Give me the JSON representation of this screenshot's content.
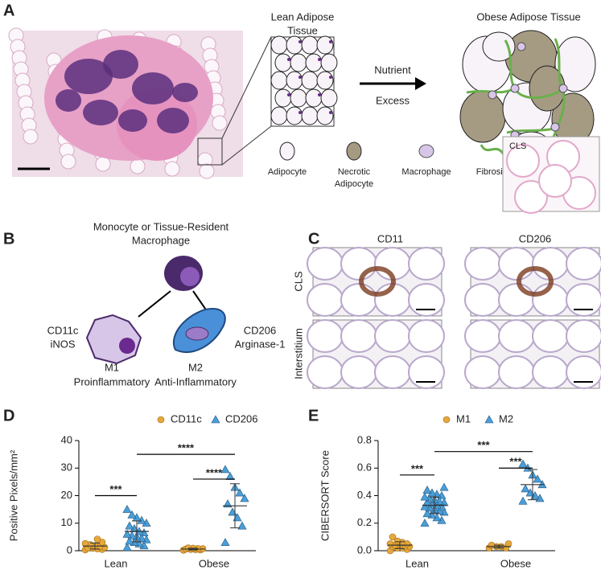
{
  "panel_letters": [
    "A",
    "B",
    "C",
    "D",
    "E"
  ],
  "panel_a": {
    "lean_title": [
      "Lean Adipose",
      "Tissue"
    ],
    "obese_title": "Obese Adipose Tissue",
    "arrow_label": [
      "Nutrient",
      "Excess"
    ],
    "legend": [
      [
        "Adipocyte"
      ],
      [
        "Necrotic",
        "Adipocyte"
      ],
      [
        "Macrophage"
      ],
      [
        "Fibrosis"
      ]
    ],
    "inset_label": "CLS"
  },
  "panel_b": {
    "origin": [
      "Monocyte or Tissue-Resident",
      "Macrophage"
    ],
    "m1_markers": [
      "CD11c",
      "iNOS"
    ],
    "m2_markers": [
      "CD206",
      "Arginase-1"
    ],
    "m1_label": [
      "M1",
      "Proinflammatory"
    ],
    "m2_label": [
      "M2",
      "Anti-Inflammatory"
    ]
  },
  "panel_c": {
    "columns": [
      "CD11",
      "CD206"
    ],
    "rows": [
      "CLS",
      "Interstitium"
    ]
  },
  "chart_data": [
    {
      "type": "strip",
      "y_label": "Positive Pixels/mm²",
      "categories": [
        "Lean",
        "Obese"
      ],
      "ylim": [
        0,
        40
      ],
      "yticks": [
        0,
        10,
        20,
        30,
        40
      ],
      "series": [
        {
          "name": "CD11c",
          "color": "#e6a83a",
          "marker": "circle",
          "values": [
            [
              0.3,
              0.5,
              0.7,
              0.9,
              1.0,
              1.2,
              1.5,
              1.8,
              2.2,
              2.6,
              3.1,
              4.2
            ],
            [
              0.2,
              0.3,
              0.4,
              0.5,
              0.6,
              0.7,
              0.8,
              0.9,
              1.0
            ]
          ],
          "means": [
            1.7,
            0.6
          ],
          "sds": [
            1.1,
            0.3
          ]
        },
        {
          "name": "CD206",
          "color": "#4a9fd8",
          "marker": "triangle",
          "values": [
            [
              1.2,
              1.8,
              2.5,
              3.0,
              3.5,
              4.0,
              4.5,
              5.0,
              5.5,
              6.0,
              6.5,
              7.0,
              8.0,
              9.0,
              10.0,
              11.0,
              12.0,
              13.0,
              15.0
            ],
            [
              3.0,
              9.0,
              12.0,
              14.0,
              17.0,
              19.0,
              21.0,
              23.0,
              27.0,
              29.5
            ]
          ],
          "means": [
            7.0,
            16.3
          ],
          "sds": [
            3.8,
            8.0
          ]
        }
      ],
      "comparisons": [
        {
          "label": "***",
          "y": 20
        },
        {
          "label": "****",
          "y": 35
        },
        {
          "label": "****",
          "y": 26
        }
      ]
    },
    {
      "type": "strip",
      "y_label": "CIBERSORT Score",
      "categories": [
        "Lean",
        "Obese"
      ],
      "ylim": [
        0,
        0.8
      ],
      "yticks": [
        {
          "value": 0,
          "label": "0.0"
        },
        0.2,
        0.4,
        0.6,
        0.8
      ],
      "series": [
        {
          "name": "M1",
          "color": "#e6a83a",
          "marker": "circle",
          "values": [
            [
              0.0,
              0.01,
              0.02,
              0.02,
              0.03,
              0.03,
              0.03,
              0.04,
              0.04,
              0.05,
              0.05,
              0.06,
              0.07,
              0.1
            ],
            [
              0.02,
              0.02,
              0.03,
              0.03,
              0.04,
              0.05
            ]
          ],
          "means": [
            0.04,
            0.03
          ],
          "sds": [
            0.025,
            0.01
          ]
        },
        {
          "name": "M2",
          "color": "#4a9fd8",
          "marker": "triangle",
          "values": [
            [
              0.2,
              0.22,
              0.24,
              0.26,
              0.27,
              0.28,
              0.29,
              0.3,
              0.31,
              0.32,
              0.32,
              0.33,
              0.34,
              0.35,
              0.35,
              0.36,
              0.37,
              0.38,
              0.39,
              0.4,
              0.41,
              0.42,
              0.44,
              0.46
            ],
            [
              0.36,
              0.38,
              0.4,
              0.42,
              0.45,
              0.48,
              0.52,
              0.55,
              0.6,
              0.63
            ]
          ],
          "means": [
            0.33,
            0.48
          ],
          "sds": [
            0.06,
            0.11
          ]
        }
      ],
      "comparisons": [
        {
          "label": "***",
          "y": 0.55
        },
        {
          "label": "***",
          "y": 0.72
        },
        {
          "label": "***",
          "y": 0.6
        }
      ]
    }
  ]
}
